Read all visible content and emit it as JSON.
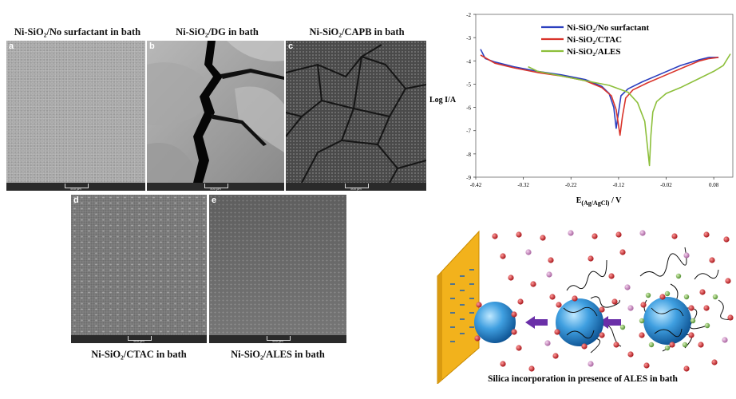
{
  "sem_panels": [
    {
      "caption": "Ni-SiO₂/No surfactant in bath",
      "letter": "a",
      "scale": "500 µm"
    },
    {
      "caption": "Ni-SiO₂/DG in bath",
      "letter": "b",
      "scale": "500 µm"
    },
    {
      "caption": "Ni-SiO₂/CAPB in bath",
      "letter": "c",
      "scale": "500 µm"
    },
    {
      "caption": "Ni-SiO₂/CTAC in bath",
      "letter": "d",
      "scale": "500 µm"
    },
    {
      "caption": "Ni-SiO₂/ALES in bath",
      "letter": "e",
      "scale": "500 µm"
    }
  ],
  "chart_data": {
    "type": "line",
    "xlabel": "E(Ag/AgCl) / V",
    "ylabel": "Log I/A",
    "xlim": [
      -0.42,
      0.12
    ],
    "ylim": [
      -9,
      -2
    ],
    "xticks": [
      "-0.42",
      "-0.32",
      "-0.22",
      "-0.12",
      "-0.02",
      "0.08"
    ],
    "xtick_values": [
      -0.42,
      -0.32,
      -0.22,
      -0.12,
      -0.02,
      0.08
    ],
    "yticks": [
      "-2",
      "-3",
      "-4",
      "-5",
      "-6",
      "-7",
      "-8",
      "-9"
    ],
    "ytick_values": [
      -2,
      -3,
      -4,
      -5,
      -6,
      -7,
      -8,
      -9
    ],
    "legend_position": "top-center",
    "series": [
      {
        "name": "Ni-SiO₂/No surfactant",
        "color": "#2b3fbf",
        "x": [
          -0.41,
          -0.4,
          -0.38,
          -0.34,
          -0.29,
          -0.24,
          -0.19,
          -0.155,
          -0.14,
          -0.13,
          -0.125,
          -0.12,
          -0.115,
          -0.1,
          -0.07,
          -0.03,
          0.01,
          0.05,
          0.07,
          0.09
        ],
        "y": [
          -3.5,
          -3.9,
          -4.05,
          -4.25,
          -4.45,
          -4.6,
          -4.8,
          -5.1,
          -5.4,
          -6.0,
          -6.9,
          -6.2,
          -5.5,
          -5.2,
          -4.9,
          -4.55,
          -4.2,
          -3.95,
          -3.85,
          -3.85
        ]
      },
      {
        "name": "Ni-SiO₂/CTAC",
        "color": "#d9342b",
        "x": [
          -0.41,
          -0.38,
          -0.34,
          -0.29,
          -0.24,
          -0.19,
          -0.155,
          -0.135,
          -0.125,
          -0.117,
          -0.112,
          -0.105,
          -0.09,
          -0.06,
          -0.02,
          0.02,
          0.05,
          0.07,
          0.09
        ],
        "y": [
          -3.75,
          -4.1,
          -4.3,
          -4.5,
          -4.65,
          -4.85,
          -5.15,
          -5.5,
          -6.1,
          -7.2,
          -6.4,
          -5.6,
          -5.25,
          -4.95,
          -4.6,
          -4.25,
          -4.0,
          -3.9,
          -3.85
        ]
      },
      {
        "name": "Ni-SiO₂/ALES",
        "color": "#8cbf3a",
        "x": [
          -0.31,
          -0.29,
          -0.24,
          -0.19,
          -0.14,
          -0.1,
          -0.08,
          -0.065,
          -0.055,
          -0.052,
          -0.048,
          -0.04,
          -0.02,
          0.01,
          0.05,
          0.08,
          0.1,
          0.115
        ],
        "y": [
          -4.25,
          -4.45,
          -4.65,
          -4.85,
          -5.05,
          -5.35,
          -5.8,
          -6.6,
          -8.5,
          -7.2,
          -6.2,
          -5.75,
          -5.4,
          -5.15,
          -4.75,
          -4.45,
          -4.2,
          -3.7
        ]
      }
    ]
  },
  "schematic": {
    "caption": "Silica incorporation in presence of ALES in bath"
  }
}
